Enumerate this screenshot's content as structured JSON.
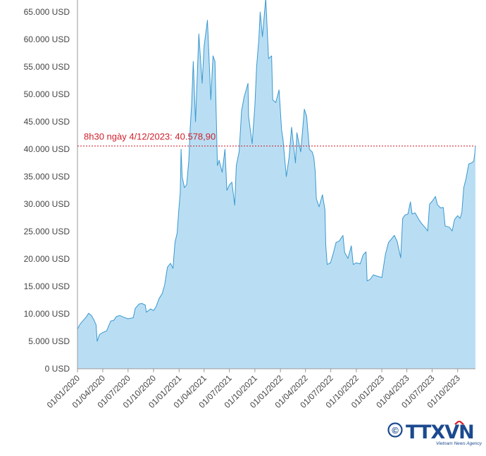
{
  "chart_data": {
    "type": "area",
    "title": "",
    "xlabel": "",
    "ylabel": "",
    "y_unit": "USD",
    "ylim": [
      0,
      67000
    ],
    "y_ticks": [
      {
        "value": 0,
        "label": "0 USD"
      },
      {
        "value": 5000,
        "label": "5.000 USD"
      },
      {
        "value": 10000,
        "label": "10.000 USD"
      },
      {
        "value": 15000,
        "label": "15.000 USD"
      },
      {
        "value": 20000,
        "label": "20.000 USD"
      },
      {
        "value": 25000,
        "label": "25.000 USD"
      },
      {
        "value": 30000,
        "label": "30.000 USD"
      },
      {
        "value": 35000,
        "label": "35.000 USD"
      },
      {
        "value": 40000,
        "label": "40.000 USD"
      },
      {
        "value": 45000,
        "label": "45.000 USD"
      },
      {
        "value": 50000,
        "label": "50.000 USD"
      },
      {
        "value": 55000,
        "label": "55.000 USD"
      },
      {
        "value": 60000,
        "label": "60.000 USD"
      },
      {
        "value": 65000,
        "label": "65.000 USD"
      }
    ],
    "x_ticks": [
      "01/01/2020",
      "01/04/2020",
      "01/07/2020",
      "01/10/2020",
      "01/01/2021",
      "01/04/2021",
      "01/07/2021",
      "01/10/2021",
      "01/01/2022",
      "01/04/2022",
      "01/07/2022",
      "01/10/2022",
      "01/01/2023",
      "01/04/2023",
      "01/07/2023",
      "01/10/2023"
    ],
    "xlim": [
      "2020-01-01",
      "2023-12-04"
    ],
    "grid": false,
    "colors": {
      "area_fill": "#b9def3",
      "line": "#3a98cf",
      "reference": "#d0202c",
      "axis": "#999999"
    },
    "reference_line": {
      "value": 40578.9,
      "label": "8h30 ngày 4/12/2023: 40.578,90"
    },
    "series": [
      {
        "points": [
          [
            "2020-01-01",
            7200
          ],
          [
            "2020-01-10",
            8100
          ],
          [
            "2020-01-20",
            8700
          ],
          [
            "2020-02-01",
            9400
          ],
          [
            "2020-02-10",
            10100
          ],
          [
            "2020-02-20",
            9700
          ],
          [
            "2020-03-01",
            8800
          ],
          [
            "2020-03-08",
            8000
          ],
          [
            "2020-03-12",
            5000
          ],
          [
            "2020-03-20",
            6200
          ],
          [
            "2020-04-01",
            6600
          ],
          [
            "2020-04-15",
            6900
          ],
          [
            "2020-04-30",
            8700
          ],
          [
            "2020-05-10",
            8800
          ],
          [
            "2020-05-20",
            9500
          ],
          [
            "2020-06-01",
            9700
          ],
          [
            "2020-06-15",
            9400
          ],
          [
            "2020-07-01",
            9100
          ],
          [
            "2020-07-20",
            9300
          ],
          [
            "2020-07-27",
            11000
          ],
          [
            "2020-08-10",
            11800
          ],
          [
            "2020-08-20",
            11900
          ],
          [
            "2020-09-01",
            11600
          ],
          [
            "2020-09-05",
            10300
          ],
          [
            "2020-09-20",
            10900
          ],
          [
            "2020-10-01",
            10600
          ],
          [
            "2020-10-10",
            11300
          ],
          [
            "2020-10-21",
            12800
          ],
          [
            "2020-11-01",
            13700
          ],
          [
            "2020-11-10",
            15300
          ],
          [
            "2020-11-20",
            18500
          ],
          [
            "2020-12-01",
            19200
          ],
          [
            "2020-12-10",
            18300
          ],
          [
            "2020-12-17",
            23000
          ],
          [
            "2020-12-25",
            24700
          ],
          [
            "2020-12-31",
            29000
          ],
          [
            "2021-01-05",
            32000
          ],
          [
            "2021-01-08",
            40000
          ],
          [
            "2021-01-12",
            35000
          ],
          [
            "2021-01-20",
            33000
          ],
          [
            "2021-01-28",
            33500
          ],
          [
            "2021-02-05",
            38000
          ],
          [
            "2021-02-10",
            44000
          ],
          [
            "2021-02-15",
            48000
          ],
          [
            "2021-02-21",
            56000
          ],
          [
            "2021-03-01",
            45000
          ],
          [
            "2021-03-13",
            61000
          ],
          [
            "2021-03-25",
            52000
          ],
          [
            "2021-04-01",
            58800
          ],
          [
            "2021-04-13",
            63500
          ],
          [
            "2021-04-25",
            49000
          ],
          [
            "2021-05-03",
            57000
          ],
          [
            "2021-05-10",
            56000
          ],
          [
            "2021-05-19",
            37000
          ],
          [
            "2021-05-25",
            38000
          ],
          [
            "2021-06-05",
            35800
          ],
          [
            "2021-06-15",
            40000
          ],
          [
            "2021-06-22",
            32500
          ],
          [
            "2021-07-01",
            33500
          ],
          [
            "2021-07-10",
            34000
          ],
          [
            "2021-07-20",
            29800
          ],
          [
            "2021-07-26",
            37000
          ],
          [
            "2021-08-05",
            39500
          ],
          [
            "2021-08-14",
            47000
          ],
          [
            "2021-08-23",
            49500
          ],
          [
            "2021-09-06",
            52000
          ],
          [
            "2021-09-08",
            46000
          ],
          [
            "2021-09-21",
            41000
          ],
          [
            "2021-10-01",
            48000
          ],
          [
            "2021-10-07",
            55000
          ],
          [
            "2021-10-15",
            60000
          ],
          [
            "2021-10-20",
            65000
          ],
          [
            "2021-10-28",
            60500
          ],
          [
            "2021-11-09",
            67500
          ],
          [
            "2021-11-19",
            56500
          ],
          [
            "2021-11-30",
            57000
          ],
          [
            "2021-12-04",
            49000
          ],
          [
            "2021-12-15",
            48500
          ],
          [
            "2021-12-27",
            50800
          ],
          [
            "2022-01-05",
            43500
          ],
          [
            "2022-01-10",
            41800
          ],
          [
            "2022-01-22",
            35000
          ],
          [
            "2022-02-01",
            38500
          ],
          [
            "2022-02-10",
            44000
          ],
          [
            "2022-02-24",
            37500
          ],
          [
            "2022-03-01",
            43000
          ],
          [
            "2022-03-15",
            39500
          ],
          [
            "2022-03-28",
            47300
          ],
          [
            "2022-04-05",
            46000
          ],
          [
            "2022-04-15",
            40000
          ],
          [
            "2022-04-25",
            39500
          ],
          [
            "2022-05-01",
            38500
          ],
          [
            "2022-05-06",
            36000
          ],
          [
            "2022-05-10",
            31000
          ],
          [
            "2022-05-20",
            29500
          ],
          [
            "2022-06-01",
            31700
          ],
          [
            "2022-06-10",
            29000
          ],
          [
            "2022-06-13",
            22500
          ],
          [
            "2022-06-18",
            19000
          ],
          [
            "2022-06-30",
            19300
          ],
          [
            "2022-07-10",
            21000
          ],
          [
            "2022-07-20",
            23000
          ],
          [
            "2022-08-01",
            23300
          ],
          [
            "2022-08-14",
            24300
          ],
          [
            "2022-08-20",
            21200
          ],
          [
            "2022-09-01",
            20100
          ],
          [
            "2022-09-13",
            22400
          ],
          [
            "2022-09-20",
            19000
          ],
          [
            "2022-10-01",
            19300
          ],
          [
            "2022-10-15",
            19100
          ],
          [
            "2022-10-26",
            20800
          ],
          [
            "2022-11-05",
            21300
          ],
          [
            "2022-11-09",
            16000
          ],
          [
            "2022-11-20",
            16300
          ],
          [
            "2022-12-01",
            17100
          ],
          [
            "2022-12-20",
            16800
          ],
          [
            "2023-01-01",
            16600
          ],
          [
            "2023-01-14",
            20900
          ],
          [
            "2023-01-25",
            23000
          ],
          [
            "2023-02-15",
            24300
          ],
          [
            "2023-02-25",
            23200
          ],
          [
            "2023-03-10",
            20200
          ],
          [
            "2023-03-17",
            27400
          ],
          [
            "2023-03-25",
            28000
          ],
          [
            "2023-04-05",
            28200
          ],
          [
            "2023-04-14",
            30400
          ],
          [
            "2023-04-20",
            28200
          ],
          [
            "2023-05-01",
            28400
          ],
          [
            "2023-05-15",
            27100
          ],
          [
            "2023-05-25",
            26400
          ],
          [
            "2023-06-05",
            25800
          ],
          [
            "2023-06-15",
            25100
          ],
          [
            "2023-06-22",
            30000
          ],
          [
            "2023-07-01",
            30500
          ],
          [
            "2023-07-13",
            31400
          ],
          [
            "2023-07-20",
            29900
          ],
          [
            "2023-08-01",
            29300
          ],
          [
            "2023-08-10",
            29400
          ],
          [
            "2023-08-17",
            26000
          ],
          [
            "2023-09-01",
            25800
          ],
          [
            "2023-09-11",
            25100
          ],
          [
            "2023-09-20",
            27200
          ],
          [
            "2023-10-01",
            27900
          ],
          [
            "2023-10-10",
            27400
          ],
          [
            "2023-10-16",
            28500
          ],
          [
            "2023-10-23",
            33000
          ],
          [
            "2023-10-31",
            34600
          ],
          [
            "2023-11-10",
            37300
          ],
          [
            "2023-11-20",
            37500
          ],
          [
            "2023-11-28",
            37800
          ],
          [
            "2023-12-02",
            39400
          ],
          [
            "2023-12-04",
            40578.9
          ]
        ]
      }
    ]
  },
  "logo": {
    "text": "TTXVN",
    "subtitle": "Vietnam News Agency",
    "symbol": "©"
  }
}
